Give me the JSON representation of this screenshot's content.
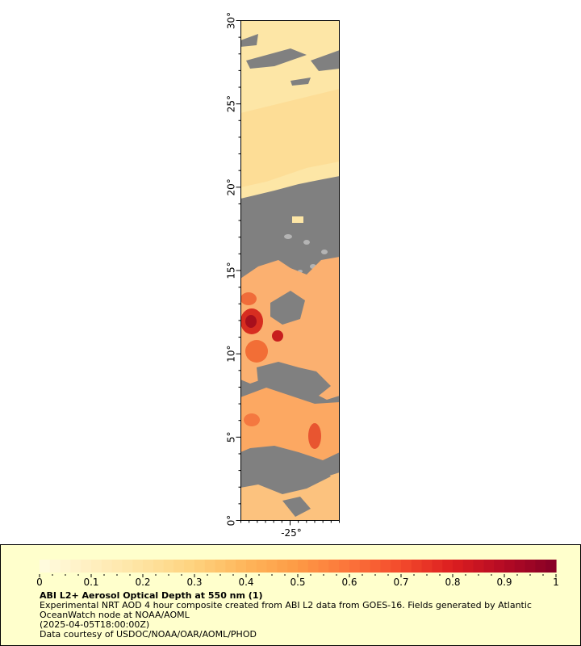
{
  "map": {
    "y_ticks": [
      "0°",
      "5°",
      "10°",
      "15°",
      "20°",
      "25°",
      "30°"
    ],
    "x_ticks": [
      "-25°"
    ],
    "colors": {
      "land": "#808080",
      "missing": "#b4b4b4",
      "frame": "#000000"
    }
  },
  "legend": {
    "title": "ABI L2+ Aerosol Optical Depth at 550 nm (1)",
    "line1": "Experimental NRT AOD 4 hour composite created from ABI L2 data from GOES-16. Fields generated by Atlantic OceanWatch node at NOAA/AOML",
    "line2": "(2025-04-05T18:00:00Z)",
    "line3": "Data courtesy of USDOC/NOAA/OAR/AOML/PHOD",
    "background": "#ffffcc"
  },
  "colorbar": {
    "min": 0,
    "max": 1,
    "tick_labels": [
      "0",
      "0.1",
      "0.2",
      "0.3",
      "0.4",
      "0.5",
      "0.6",
      "0.7",
      "0.8",
      "0.9",
      "1"
    ],
    "colors": [
      "#fffce0",
      "#ffefc0",
      "#fee3a0",
      "#fed27e",
      "#feb55a",
      "#fd9a45",
      "#fc733a",
      "#f34a2c",
      "#dc1e20",
      "#b40a24",
      "#850026"
    ]
  }
}
